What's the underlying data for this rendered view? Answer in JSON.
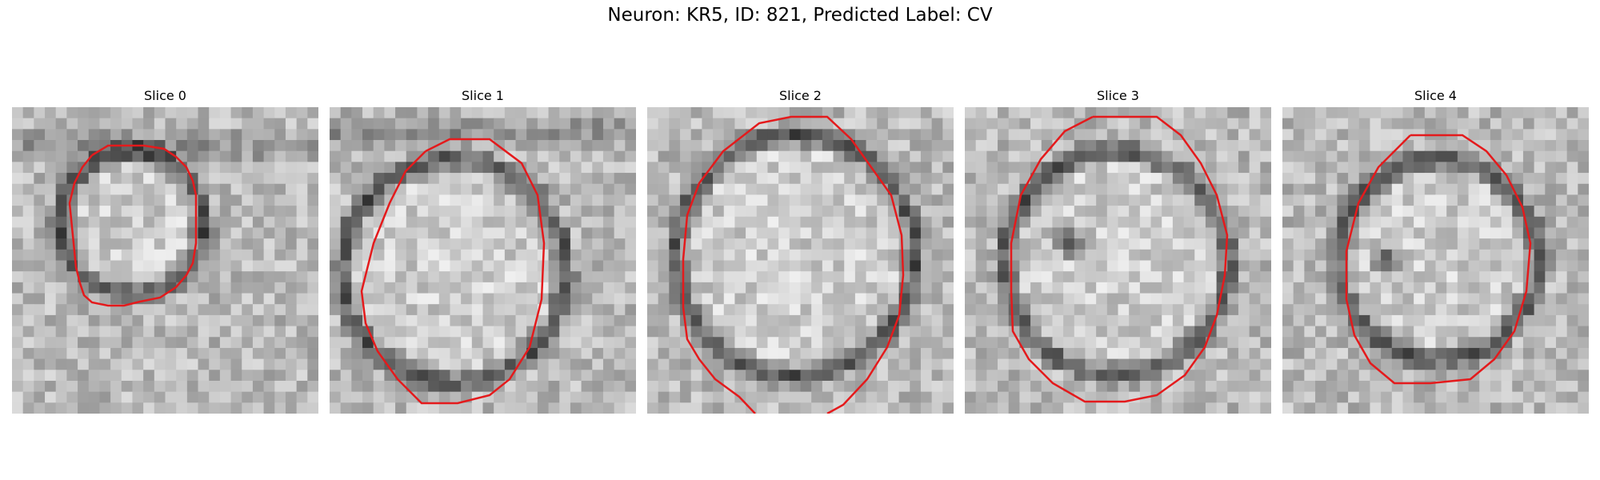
{
  "figure": {
    "title": "Neuron: KR5, ID: 821, Predicted Label: CV"
  },
  "colors": {
    "contour": "#e41a1c",
    "background": "#ffffff"
  },
  "slices": [
    {
      "title": "Slice 0",
      "contour_color_name": "red",
      "image_content": "grayscale EM crop, roughly circular cell profile with dark membrane ring"
    },
    {
      "title": "Slice 1",
      "contour_color_name": "red",
      "image_content": "grayscale EM crop, larger bright oval profile with dark rim"
    },
    {
      "title": "Slice 2",
      "contour_color_name": "red",
      "image_content": "grayscale EM crop, bright profile whose contour runs past the bottom edge"
    },
    {
      "title": "Slice 3",
      "contour_color_name": "red",
      "image_content": "grayscale EM crop, profile with dark spot near center"
    },
    {
      "title": "Slice 4",
      "contour_color_name": "red",
      "image_content": "grayscale EM crop, profile with dark spot left of center"
    }
  ]
}
